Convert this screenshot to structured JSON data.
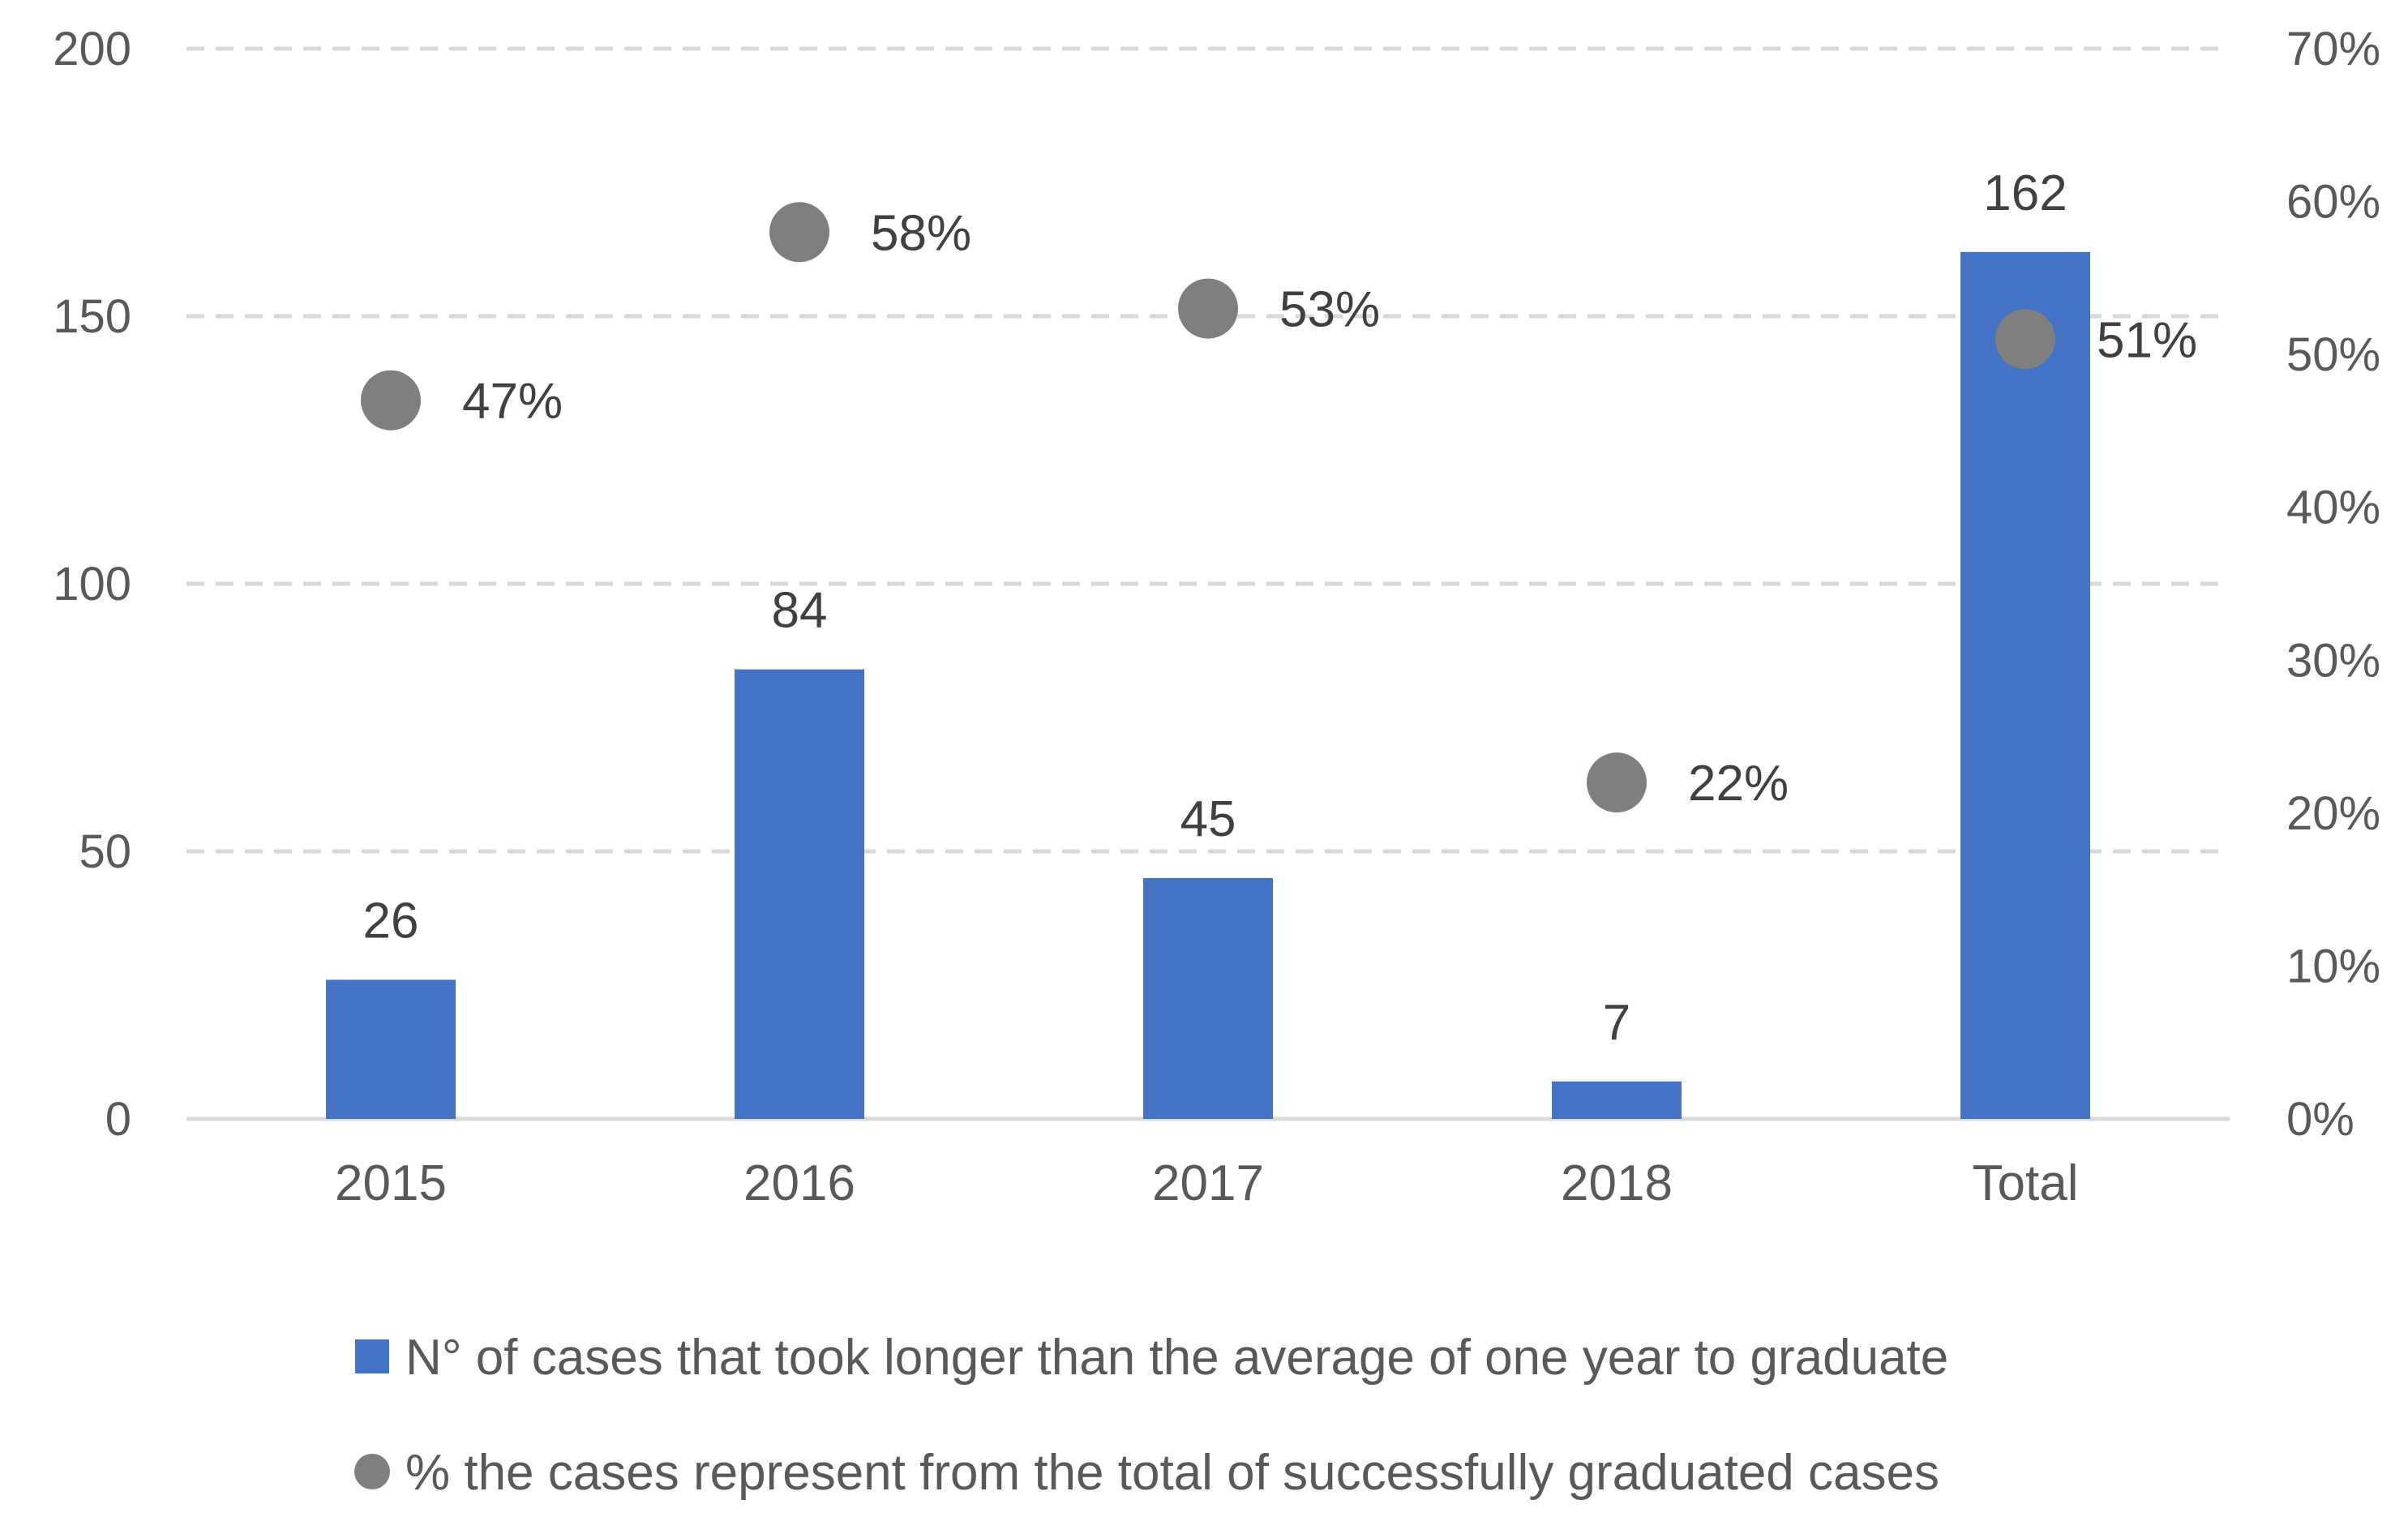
{
  "chart_data": {
    "type": "bar",
    "title": "",
    "categories": [
      "2015",
      "2016",
      "2017",
      "2018",
      "Total"
    ],
    "series": [
      {
        "name": "N° of cases that took longer than the average of one year to graduate",
        "kind": "bar",
        "axis": "left",
        "color": "#4472C4",
        "values": [
          26,
          84,
          45,
          7,
          162
        ],
        "labels": [
          "26",
          "84",
          "45",
          "7",
          "162"
        ]
      },
      {
        "name": "% the cases represent from the total of successfully graduated cases",
        "kind": "scatter",
        "axis": "right",
        "color": "#7F7F7F",
        "values": [
          0.47,
          0.58,
          0.53,
          0.22,
          0.51
        ],
        "labels": [
          "47%",
          "58%",
          "53%",
          "22%",
          "51%"
        ]
      }
    ],
    "y_left": {
      "range": [
        0,
        200
      ],
      "ticks": [
        0,
        50,
        100,
        150,
        200
      ],
      "tick_labels": [
        "0",
        "50",
        "100",
        "150",
        "200"
      ]
    },
    "y_right": {
      "range": [
        0,
        0.7
      ],
      "ticks": [
        0,
        0.1,
        0.2,
        0.3,
        0.4,
        0.5,
        0.6,
        0.7
      ],
      "tick_labels": [
        "0%",
        "10%",
        "20%",
        "30%",
        "40%",
        "50%",
        "60%",
        "70%"
      ]
    },
    "grid": "dashed horizontal",
    "legend": "bottom"
  }
}
